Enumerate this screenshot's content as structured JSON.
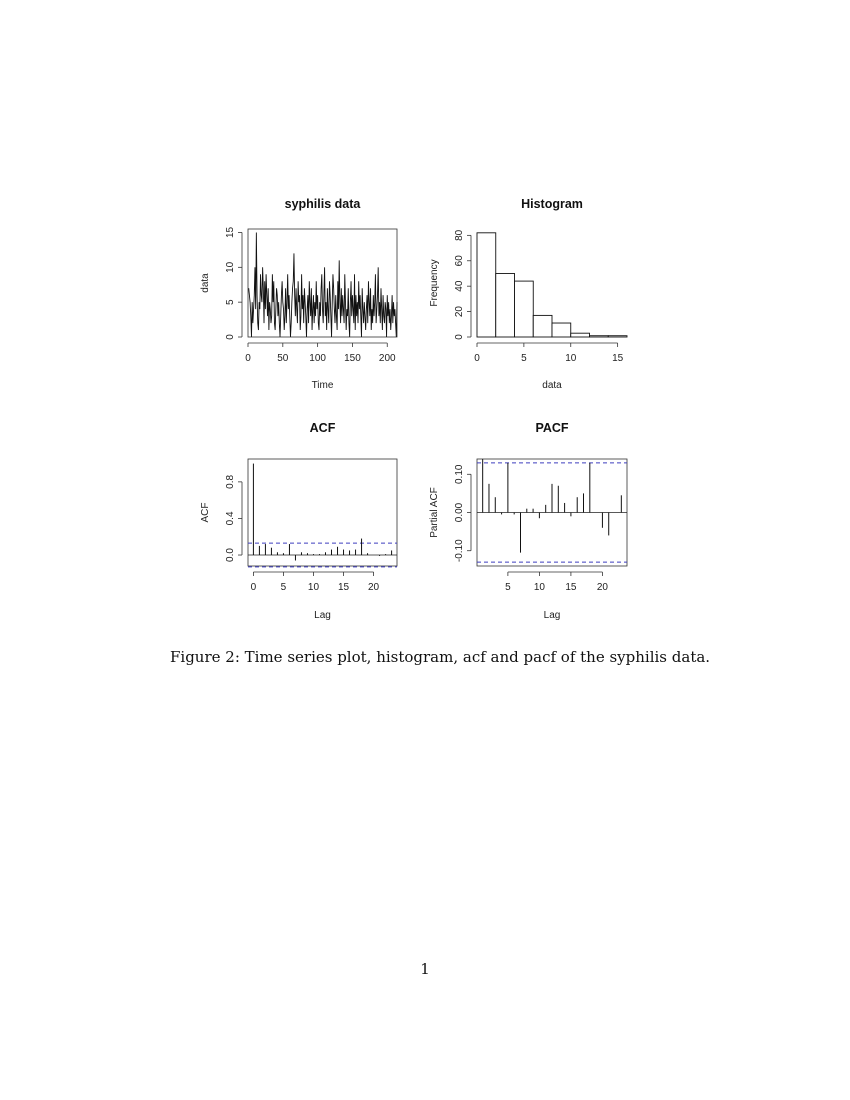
{
  "figure": {
    "caption": "Figure 2: Time series plot, histogram, acf and pacf of the syphilis data.",
    "page_number": "1"
  },
  "chart_data": [
    {
      "id": "ts",
      "type": "line",
      "title": "syphilis data",
      "xlabel": "Time",
      "ylabel": "data",
      "xlim": [
        0,
        214
      ],
      "ylim": [
        0,
        15.5
      ],
      "xticks": [
        0,
        50,
        100,
        150,
        200
      ],
      "yticks": [
        0,
        5,
        10,
        15
      ],
      "x_start": 1,
      "values": [
        7,
        6,
        5,
        3,
        0,
        5,
        2,
        4,
        6,
        10,
        4,
        15,
        6,
        2,
        1,
        5,
        4,
        9,
        6,
        5,
        10,
        7,
        2,
        8,
        4,
        9,
        6,
        3,
        7,
        1,
        5,
        4,
        2,
        3,
        9,
        5,
        8,
        2,
        1,
        4,
        7,
        6,
        3,
        5,
        2,
        0,
        3,
        6,
        8,
        5,
        4,
        1,
        3,
        7,
        2,
        5,
        9,
        4,
        6,
        3,
        0,
        2,
        5,
        7,
        8,
        12,
        6,
        3,
        7,
        4,
        2,
        8,
        5,
        6,
        1,
        3,
        9,
        4,
        6,
        2,
        7,
        5,
        3,
        0,
        4,
        6,
        2,
        8,
        5,
        3,
        7,
        1,
        4,
        6,
        2,
        5,
        3,
        8,
        4,
        6,
        2,
        1,
        5,
        3,
        7,
        9,
        4,
        2,
        6,
        10,
        3,
        5,
        1,
        7,
        4,
        2,
        8,
        6,
        3,
        0,
        5,
        9,
        7,
        4,
        2,
        6,
        3,
        1,
        8,
        4,
        11,
        5,
        2,
        7,
        3,
        6,
        4,
        2,
        9,
        5,
        1,
        4,
        3,
        7,
        2,
        0,
        5,
        8,
        3,
        6,
        4,
        2,
        9,
        1,
        6,
        3,
        5,
        2,
        8,
        4,
        6,
        3,
        0,
        7,
        4,
        2,
        5,
        3,
        1,
        4,
        6,
        2,
        8,
        5,
        3,
        7,
        1,
        4,
        2,
        6,
        3,
        5,
        9,
        2,
        4,
        6,
        10,
        3,
        5,
        2,
        7,
        4,
        1,
        6,
        3,
        2,
        5,
        4,
        0,
        6,
        3,
        5,
        2,
        4,
        1,
        3,
        6,
        2,
        5,
        3,
        4,
        2,
        0,
        5
      ]
    },
    {
      "id": "hist",
      "type": "bar",
      "title": "Histogram",
      "xlabel": "data",
      "ylabel": "Frequency",
      "xlim": [
        0,
        16
      ],
      "ylim": [
        0,
        85
      ],
      "xticks": [
        0,
        5,
        10,
        15
      ],
      "yticks": [
        0,
        20,
        40,
        60,
        80
      ],
      "bins": [
        [
          0,
          2
        ],
        [
          2,
          4
        ],
        [
          4,
          6
        ],
        [
          6,
          8
        ],
        [
          8,
          10
        ],
        [
          10,
          12
        ],
        [
          12,
          14
        ],
        [
          14,
          16
        ]
      ],
      "values": [
        82,
        50,
        44,
        17,
        11,
        3,
        1,
        1
      ]
    },
    {
      "id": "acf",
      "type": "bar",
      "title": "ACF",
      "xlabel": "Lag",
      "ylabel": "ACF",
      "xlim": [
        -0.9,
        23.9
      ],
      "ylim": [
        -0.12,
        1.05
      ],
      "xticks": [
        0,
        5,
        10,
        15,
        20
      ],
      "yticks": [
        0.0,
        0.4,
        0.8
      ],
      "ytick_labels": [
        "0.0",
        "0.4",
        "0.8"
      ],
      "lags": [
        0,
        1,
        2,
        3,
        4,
        5,
        6,
        7,
        8,
        9,
        10,
        11,
        12,
        13,
        14,
        15,
        16,
        17,
        18,
        19,
        20,
        21,
        22,
        23
      ],
      "values": [
        1.0,
        0.1,
        0.12,
        0.08,
        0.03,
        0.02,
        0.12,
        -0.06,
        0.03,
        0.02,
        0.01,
        0.01,
        0.03,
        0.06,
        0.09,
        0.06,
        0.05,
        0.06,
        0.18,
        0.02,
        0.0,
        -0.01,
        0.01,
        0.05
      ],
      "ci": 0.13,
      "ci_color": "#3f3fbf"
    },
    {
      "id": "pacf",
      "type": "bar",
      "title": "PACF",
      "xlabel": "Lag",
      "ylabel": "Partial ACF",
      "xlim": [
        0.1,
        23.9
      ],
      "ylim": [
        -0.14,
        0.14
      ],
      "xticks": [
        5,
        10,
        15,
        20
      ],
      "yticks": [
        -0.1,
        0.0,
        0.1
      ],
      "ytick_labels": [
        "-0.10",
        "0.00",
        "0.10"
      ],
      "lags": [
        1,
        2,
        3,
        4,
        5,
        6,
        7,
        8,
        9,
        10,
        11,
        12,
        13,
        14,
        15,
        16,
        17,
        18,
        19,
        20,
        21,
        22,
        23
      ],
      "values": [
        0.14,
        0.075,
        0.04,
        -0.005,
        0.13,
        -0.005,
        -0.105,
        0.01,
        0.01,
        -0.015,
        0.02,
        0.075,
        0.07,
        0.025,
        -0.01,
        0.04,
        0.05,
        0.13,
        0.0,
        -0.04,
        -0.06,
        0.0,
        0.045
      ],
      "ci": 0.13,
      "ci_color": "#3f3fbf"
    }
  ]
}
